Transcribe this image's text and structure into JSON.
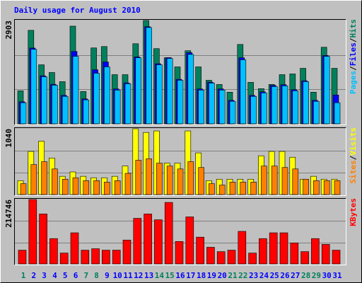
{
  "title": "Daily usage for August 2010",
  "axis_label_separator": "/",
  "chart_data": [
    {
      "type": "bar",
      "ylim": [
        0,
        2903
      ],
      "yticks": [
        2903
      ],
      "series": [
        {
          "name": "Hits",
          "color": "#00805c",
          "values": [
            928,
            2627,
            1659,
            1442,
            1185,
            2745,
            908,
            2133,
            2172,
            1382,
            1382,
            2251,
            2903,
            2113,
            1856,
            1600,
            2054,
            1600,
            1224,
            1106,
            889,
            2231,
            1165,
            988,
            1106,
            1382,
            1402,
            1560,
            889,
            2152,
            1560
          ]
        },
        {
          "name": "Files",
          "color": "#0000ff",
          "values": [
            620,
            2130,
            1350,
            1110,
            800,
            2034,
            700,
            1520,
            1738,
            980,
            1150,
            1880,
            2730,
            1690,
            1860,
            1250,
            2000,
            980,
            1170,
            980,
            660,
            1856,
            800,
            900,
            1080,
            1100,
            960,
            1210,
            660,
            1920,
            810
          ]
        },
        {
          "name": "Pages",
          "color": "#00c0ff",
          "values": [
            593,
            2093,
            1323,
            1086,
            770,
            1896,
            672,
            1422,
            1600,
            948,
            1126,
            1856,
            2706,
            1659,
            1837,
            1224,
            1950,
            948,
            1145,
            948,
            632,
            1800,
            770,
            869,
            1047,
            1067,
            928,
            1185,
            632,
            1896,
            593
          ]
        }
      ]
    },
    {
      "type": "bar",
      "ylim": [
        0,
        1040
      ],
      "yticks": [
        1040
      ],
      "series": [
        {
          "name": "Visits",
          "color": "#ffff00",
          "values": [
            220,
            682,
            844,
            578,
            289,
            358,
            289,
            266,
            266,
            289,
            451,
            1040,
            982,
            1006,
            497,
            497,
            1006,
            659,
            220,
            243,
            243,
            243,
            243,
            613,
            682,
            682,
            590,
            243,
            289,
            243,
            243
          ]
        },
        {
          "name": "Sites",
          "color": "#ff8000",
          "values": [
            173,
            474,
            520,
            405,
            243,
            266,
            220,
            220,
            197,
            220,
            335,
            543,
            566,
            497,
            451,
            405,
            520,
            428,
            173,
            150,
            197,
            197,
            197,
            451,
            451,
            428,
            405,
            243,
            220,
            220,
            220
          ]
        }
      ]
    },
    {
      "type": "bar",
      "ylim": [
        0,
        214746
      ],
      "yticks": [
        214746
      ],
      "categories": [
        "1",
        "2",
        "3",
        "4",
        "5",
        "6",
        "7",
        "8",
        "9",
        "10",
        "11",
        "12",
        "13",
        "14",
        "15",
        "16",
        "17",
        "18",
        "19",
        "20",
        "21",
        "22",
        "23",
        "24",
        "25",
        "26",
        "27",
        "28",
        "29",
        "30",
        "31"
      ],
      "category_colors": [
        "#00805c",
        "#0000ff",
        "#0000ff",
        "#0000ff",
        "#0000ff",
        "#0000ff",
        "#00805c",
        "#00805c",
        "#0000ff",
        "#0000ff",
        "#0000ff",
        "#0000ff",
        "#0000ff",
        "#00805c",
        "#00805c",
        "#0000ff",
        "#0000ff",
        "#0000ff",
        "#0000ff",
        "#0000ff",
        "#00805c",
        "#00805c",
        "#0000ff",
        "#0000ff",
        "#0000ff",
        "#0000ff",
        "#0000ff",
        "#00805c",
        "#00805c",
        "#0000ff",
        "#0000ff"
      ],
      "series": [
        {
          "name": "KBytes",
          "color": "#ff0000",
          "values": [
            45847,
            214746,
            166497,
            84455,
            36195,
            103759,
            45847,
            50673,
            45847,
            45847,
            79629,
            152019,
            166497,
            147193,
            205101,
            74803,
            156845,
            89281,
            55499,
            41021,
            45847,
            108585,
            36195,
            84455,
            103759,
            103759,
            69977,
            41021,
            84455,
            65151,
            45847
          ]
        }
      ]
    }
  ]
}
